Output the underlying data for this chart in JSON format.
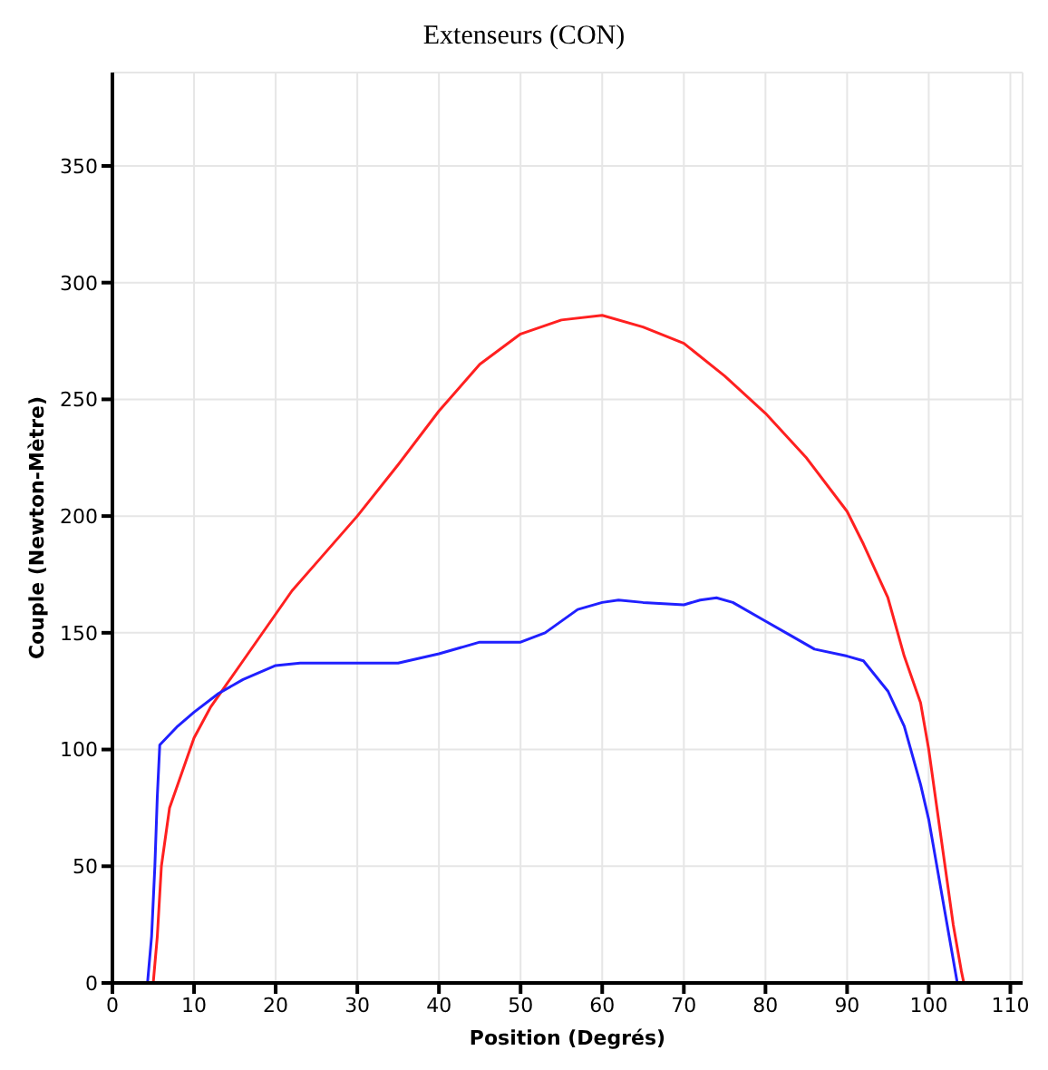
{
  "chart_data": {
    "type": "line",
    "title": "Extenseurs (CON)",
    "xlabel": "Position (Degrés)",
    "ylabel": "Couple (Newton-Mètre)",
    "xlim": [
      0,
      111.5
    ],
    "xticks": [
      0,
      10,
      20,
      30,
      40,
      50,
      60,
      70,
      80,
      90,
      100,
      110
    ],
    "ylim": [
      0,
      390
    ],
    "yticks": [
      0,
      50,
      100,
      150,
      200,
      250,
      300,
      350
    ],
    "grid": true,
    "marker": "none",
    "line_style": "solid",
    "series": [
      {
        "color": "#ff2020",
        "x": [
          5,
          5.5,
          6,
          7,
          9,
          10,
          12,
          14,
          16,
          18,
          20,
          22,
          25,
          30,
          35,
          40,
          45,
          50,
          55,
          60,
          65,
          70,
          75,
          80,
          85,
          90,
          92,
          95,
          97,
          99,
          100,
          101,
          102,
          103,
          104,
          104.3
        ],
        "values": [
          0,
          20,
          50,
          75,
          95,
          105,
          118,
          128,
          138,
          148,
          158,
          168,
          180,
          200,
          222,
          245,
          265,
          278,
          284,
          286,
          281,
          274,
          260,
          244,
          225,
          202,
          188,
          165,
          140,
          120,
          100,
          75,
          50,
          25,
          5,
          0
        ]
      },
      {
        "color": "#2020ff",
        "x": [
          4.3,
          4.8,
          5.2,
          5.5,
          5.8,
          8,
          10,
          13,
          16,
          20,
          23,
          35,
          40,
          45,
          50,
          53,
          57,
          60,
          62,
          65,
          70,
          72,
          74,
          76,
          80,
          83,
          86,
          90,
          92,
          95,
          97,
          99,
          100,
          101,
          102,
          103,
          103.5
        ],
        "values": [
          0,
          20,
          50,
          80,
          102,
          110,
          116,
          124,
          130,
          136,
          137,
          137,
          141,
          146,
          146,
          150,
          160,
          163,
          164,
          163,
          162,
          164,
          165,
          163,
          155,
          149,
          143,
          140,
          138,
          125,
          110,
          85,
          70,
          50,
          30,
          10,
          0
        ]
      }
    ]
  }
}
